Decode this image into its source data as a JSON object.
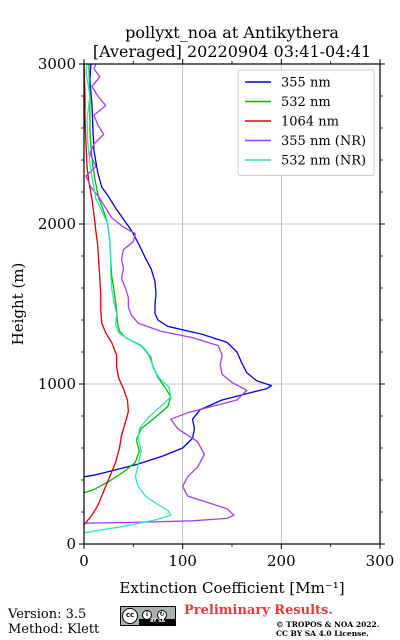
{
  "chart_data": {
    "type": "line",
    "title": "pollyxt_noa at Antikythera",
    "subtitle": "[Averaged] 20220904 03:41-04:41",
    "xlabel": "Extinction Coefficient [Mm⁻¹]",
    "ylabel": "Height (m)",
    "xlim": [
      0,
      300
    ],
    "ylim": [
      0,
      3000
    ],
    "xticks": [
      "0",
      "100",
      "200",
      "300"
    ],
    "yticks": [
      "0",
      "1000",
      "2000",
      "3000"
    ],
    "grid": true,
    "legend_position": "top-right",
    "series": [
      {
        "name": "355 nm",
        "color": "#0000dd",
        "points": [
          [
            0,
            420
          ],
          [
            10,
            430
          ],
          [
            30,
            460
          ],
          [
            55,
            500
          ],
          [
            80,
            550
          ],
          [
            100,
            600
          ],
          [
            110,
            660
          ],
          [
            112,
            720
          ],
          [
            110,
            780
          ],
          [
            118,
            840
          ],
          [
            140,
            900
          ],
          [
            165,
            940
          ],
          [
            185,
            970
          ],
          [
            190,
            990
          ],
          [
            175,
            1020
          ],
          [
            165,
            1070
          ],
          [
            160,
            1130
          ],
          [
            155,
            1200
          ],
          [
            145,
            1260
          ],
          [
            120,
            1310
          ],
          [
            85,
            1360
          ],
          [
            75,
            1400
          ],
          [
            72,
            1440
          ],
          [
            72,
            1500
          ],
          [
            73,
            1560
          ],
          [
            72,
            1640
          ],
          [
            68,
            1720
          ],
          [
            62,
            1790
          ],
          [
            55,
            1880
          ],
          [
            48,
            1960
          ],
          [
            40,
            2030
          ],
          [
            32,
            2100
          ],
          [
            25,
            2170
          ],
          [
            18,
            2230
          ],
          [
            14,
            2320
          ],
          [
            10,
            2460
          ],
          [
            9,
            2600
          ],
          [
            8,
            2750
          ],
          [
            6,
            2900
          ],
          [
            7,
            3000
          ]
        ]
      },
      {
        "name": "532 nm",
        "color": "#00bb00",
        "points": [
          [
            0,
            320
          ],
          [
            10,
            340
          ],
          [
            25,
            390
          ],
          [
            40,
            450
          ],
          [
            52,
            510
          ],
          [
            56,
            580
          ],
          [
            53,
            650
          ],
          [
            58,
            720
          ],
          [
            72,
            790
          ],
          [
            85,
            860
          ],
          [
            88,
            920
          ],
          [
            82,
            980
          ],
          [
            75,
            1040
          ],
          [
            70,
            1110
          ],
          [
            66,
            1180
          ],
          [
            58,
            1240
          ],
          [
            42,
            1290
          ],
          [
            36,
            1330
          ],
          [
            34,
            1380
          ],
          [
            33,
            1460
          ],
          [
            31,
            1560
          ],
          [
            28,
            1680
          ],
          [
            27,
            1790
          ],
          [
            26,
            1900
          ],
          [
            24,
            2000
          ],
          [
            20,
            2080
          ],
          [
            15,
            2160
          ],
          [
            12,
            2250
          ],
          [
            9,
            2360
          ],
          [
            7,
            2480
          ],
          [
            6,
            2600
          ],
          [
            6,
            2800
          ],
          [
            5,
            3000
          ]
        ]
      },
      {
        "name": "1064 nm",
        "color": "#dd0000",
        "points": [
          [
            0,
            120
          ],
          [
            8,
            180
          ],
          [
            14,
            240
          ],
          [
            20,
            330
          ],
          [
            26,
            420
          ],
          [
            32,
            510
          ],
          [
            36,
            600
          ],
          [
            38,
            680
          ],
          [
            42,
            760
          ],
          [
            45,
            830
          ],
          [
            44,
            900
          ],
          [
            40,
            970
          ],
          [
            35,
            1040
          ],
          [
            33,
            1110
          ],
          [
            33,
            1180
          ],
          [
            28,
            1260
          ],
          [
            22,
            1320
          ],
          [
            18,
            1380
          ],
          [
            17,
            1460
          ],
          [
            17,
            1560
          ],
          [
            16,
            1660
          ],
          [
            15,
            1760
          ],
          [
            14,
            1860
          ],
          [
            12,
            1960
          ],
          [
            10,
            2060
          ],
          [
            8,
            2160
          ],
          [
            5,
            2260
          ],
          [
            3,
            2360
          ],
          [
            2,
            2500
          ],
          [
            1,
            2650
          ],
          [
            1,
            2800
          ],
          [
            0,
            3000
          ]
        ]
      },
      {
        "name": "355 nm (NR)",
        "color": "#a040ee",
        "points": [
          [
            0,
            130
          ],
          [
            50,
            135
          ],
          [
            110,
            145
          ],
          [
            145,
            160
          ],
          [
            152,
            180
          ],
          [
            145,
            220
          ],
          [
            125,
            260
          ],
          [
            105,
            300
          ],
          [
            100,
            360
          ],
          [
            105,
            420
          ],
          [
            115,
            480
          ],
          [
            122,
            560
          ],
          [
            115,
            640
          ],
          [
            95,
            720
          ],
          [
            88,
            780
          ],
          [
            105,
            820
          ],
          [
            130,
            860
          ],
          [
            155,
            900
          ],
          [
            165,
            960
          ],
          [
            150,
            1010
          ],
          [
            140,
            1060
          ],
          [
            138,
            1120
          ],
          [
            140,
            1180
          ],
          [
            136,
            1240
          ],
          [
            110,
            1290
          ],
          [
            78,
            1330
          ],
          [
            55,
            1380
          ],
          [
            48,
            1430
          ],
          [
            45,
            1480
          ],
          [
            45,
            1540
          ],
          [
            42,
            1600
          ],
          [
            38,
            1660
          ],
          [
            40,
            1720
          ],
          [
            38,
            1780
          ],
          [
            40,
            1840
          ],
          [
            50,
            1890
          ],
          [
            52,
            1940
          ],
          [
            40,
            1980
          ],
          [
            28,
            2040
          ],
          [
            22,
            2100
          ],
          [
            15,
            2170
          ],
          [
            7,
            2230
          ],
          [
            2,
            2300
          ],
          [
            12,
            2360
          ],
          [
            6,
            2440
          ],
          [
            10,
            2500
          ],
          [
            20,
            2560
          ],
          [
            14,
            2620
          ],
          [
            10,
            2680
          ],
          [
            22,
            2740
          ],
          [
            14,
            2800
          ],
          [
            8,
            2860
          ],
          [
            16,
            2920
          ],
          [
            10,
            2970
          ],
          [
            12,
            3000
          ]
        ]
      },
      {
        "name": "532 nm (NR)",
        "color": "#33e0c0",
        "points": [
          [
            0,
            70
          ],
          [
            40,
            110
          ],
          [
            72,
            150
          ],
          [
            88,
            180
          ],
          [
            85,
            210
          ],
          [
            74,
            250
          ],
          [
            62,
            300
          ],
          [
            55,
            360
          ],
          [
            52,
            420
          ],
          [
            55,
            500
          ],
          [
            58,
            580
          ],
          [
            55,
            660
          ],
          [
            56,
            720
          ],
          [
            65,
            790
          ],
          [
            78,
            860
          ],
          [
            88,
            920
          ],
          [
            86,
            980
          ],
          [
            76,
            1040
          ],
          [
            70,
            1100
          ],
          [
            68,
            1170
          ],
          [
            60,
            1230
          ],
          [
            45,
            1280
          ],
          [
            35,
            1320
          ],
          [
            32,
            1370
          ],
          [
            33,
            1440
          ],
          [
            30,
            1520
          ],
          [
            28,
            1600
          ],
          [
            27,
            1700
          ],
          [
            27,
            1800
          ],
          [
            26,
            1900
          ],
          [
            24,
            2000
          ],
          [
            18,
            2080
          ],
          [
            12,
            2160
          ],
          [
            9,
            2260
          ],
          [
            6,
            2380
          ],
          [
            4,
            2500
          ],
          [
            3,
            2650
          ],
          [
            6,
            2800
          ],
          [
            2,
            2950
          ],
          [
            3,
            3000
          ]
        ]
      }
    ]
  },
  "footer": {
    "version": "Version: 3.5",
    "method": "Method: Klett",
    "preliminary": "Preliminary Results.",
    "copyright_line1": "© TROPOS & NOA 2022.",
    "copyright_line2": "CC BY SA 4.0 License.",
    "license_badge": "BY SA"
  }
}
